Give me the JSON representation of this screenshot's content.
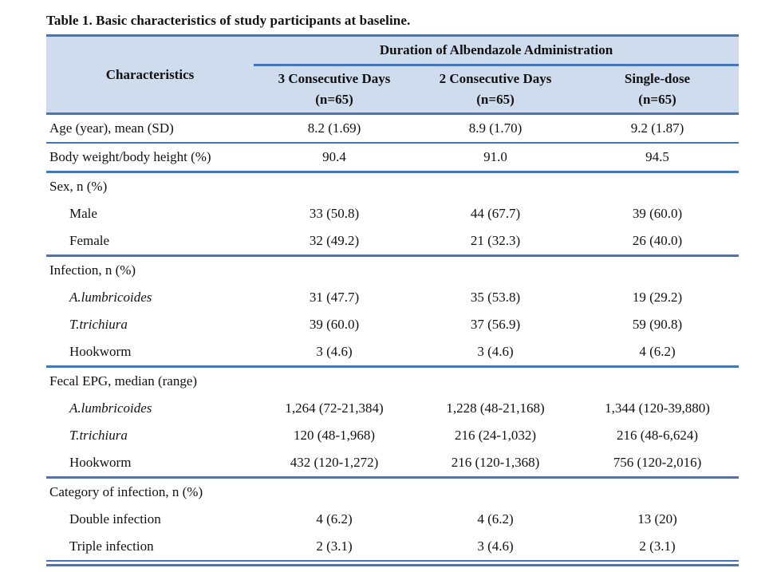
{
  "colors": {
    "accent_line": "#4576b9",
    "header_fill": "#cfdcee"
  },
  "caption": "Table 1. Basic characteristics of study participants at baseline.",
  "table": {
    "characteristics_header": "Characteristics",
    "group_header": "Duration of Albendazole Administration",
    "columns": [
      {
        "label": "3 Consecutive Days",
        "sub": "(n=65)"
      },
      {
        "label": "2 Consecutive Days",
        "sub": "(n=65)"
      },
      {
        "label": "Single-dose",
        "sub": "(n=65)"
      }
    ],
    "rows": [
      {
        "type": "data",
        "label": "Age (year), mean (SD)",
        "values": [
          "8.2 (1.69)",
          "8.9 (1.70)",
          "9.2 (1.87)"
        ],
        "divider": "thin"
      },
      {
        "type": "data",
        "label": "Body weight/body height (%)",
        "values": [
          "90.4",
          "91.0",
          "94.5"
        ],
        "divider": "thick"
      },
      {
        "type": "section",
        "label": "Sex, n (%)"
      },
      {
        "type": "data",
        "indent": true,
        "label": "Male",
        "values": [
          "33 (50.8)",
          "44 (67.7)",
          "39 (60.0)"
        ]
      },
      {
        "type": "data",
        "indent": true,
        "label": "Female",
        "values": [
          "32 (49.2)",
          "21 (32.3)",
          "26 (40.0)"
        ],
        "divider": "thick"
      },
      {
        "type": "section",
        "label": "Infection, n (%)"
      },
      {
        "type": "data",
        "indent": true,
        "italic": true,
        "label": "A.lumbricoides",
        "values": [
          "31 (47.7)",
          "35 (53.8)",
          "19 (29.2)"
        ]
      },
      {
        "type": "data",
        "indent": true,
        "italic": true,
        "label": "T.trichiura",
        "values": [
          "39 (60.0)",
          "37 (56.9)",
          "59 (90.8)"
        ]
      },
      {
        "type": "data",
        "indent": true,
        "label": "Hookworm",
        "values": [
          "3 (4.6)",
          "3 (4.6)",
          "4 (6.2)"
        ],
        "divider": "thick"
      },
      {
        "type": "section",
        "label": "Fecal EPG, median (range)"
      },
      {
        "type": "data",
        "indent": true,
        "italic": true,
        "label": "A.lumbricoides",
        "values": [
          "1,264 (72-21,384)",
          "1,228 (48-21,168)",
          "1,344 (120-39,880)"
        ]
      },
      {
        "type": "data",
        "indent": true,
        "italic": true,
        "label": "T.trichiura",
        "values": [
          "120 (48-1,968)",
          "216 (24-1,032)",
          "216 (48-6,624)"
        ]
      },
      {
        "type": "data",
        "indent": true,
        "label": "Hookworm",
        "values": [
          "432 (120-1,272)",
          "216 (120-1,368)",
          "756 (120-2,016)"
        ],
        "divider": "thick"
      },
      {
        "type": "section",
        "label": "Category of infection, n (%)"
      },
      {
        "type": "data",
        "indent": true,
        "label": "Double infection",
        "values": [
          "4 (6.2)",
          "4 (6.2)",
          "13 (20)"
        ]
      },
      {
        "type": "data",
        "indent": true,
        "label": "Triple infection",
        "values": [
          "2 (3.1)",
          "3 (4.6)",
          "2 (3.1)"
        ],
        "divider": "thin"
      }
    ]
  }
}
